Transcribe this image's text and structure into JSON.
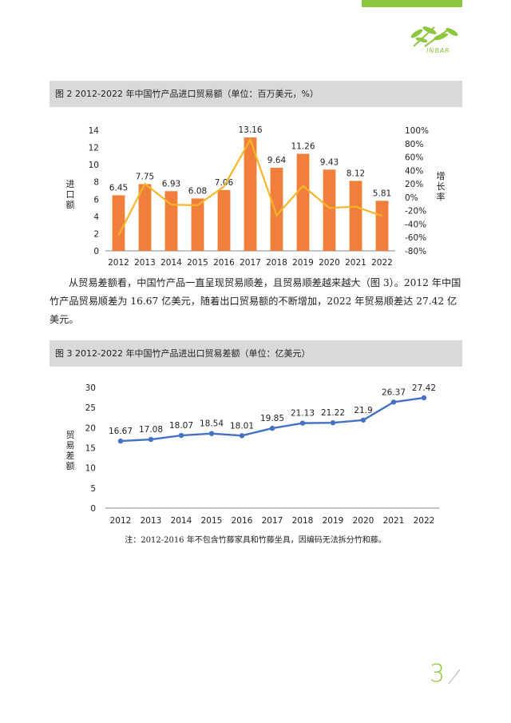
{
  "header": {
    "logo_text": "INBAR",
    "accent_color": "#8dc63f"
  },
  "figure2": {
    "caption": "图 2    2012-2022 年中国竹产品进口贸易额（单位：百万美元，%）",
    "ylabel_left": "进口额",
    "ylabel_right": "增长率"
  },
  "body_text": "从贸易差额看，中国竹产品一直呈现贸易顺差，且贸易顺差越来越大（图 3）。2012 年中国竹产品贸易顺差为 16.67 亿美元，随着出口贸易额的不断增加，2022 年贸易顺差达 27.42 亿美元。",
  "figure3": {
    "caption": "图 3    2012-2022 年中国竹产品进出口贸易差额（单位：亿美元）",
    "ylabel": "贸易差额"
  },
  "note": "注：2012-2016 年不包含竹藤家具和竹藤坐具，因编码无法拆分竹和藤。",
  "page_number": "3",
  "chart_data": [
    {
      "type": "bar",
      "categories": [
        "2012",
        "2013",
        "2014",
        "2015",
        "2016",
        "2017",
        "2018",
        "2019",
        "2020",
        "2021",
        "2022"
      ],
      "series": [
        {
          "name": "",
          "type": "bar",
          "axis": "left",
          "values": [
            6.45,
            7.75,
            6.93,
            6.08,
            7.06,
            13.16,
            9.64,
            11.26,
            9.43,
            8.12,
            5.81
          ],
          "labels": [
            "6.45",
            "7.75",
            "6.93",
            "6.08",
            "7.06",
            "13.16",
            "9.64",
            "11.26",
            "9.43",
            "8.12",
            "5.81"
          ],
          "color": "#f07f3c"
        },
        {
          "name": "",
          "type": "line",
          "axis": "right",
          "values": [
            -57,
            20,
            -11,
            -12,
            16,
            86,
            -27,
            17,
            -16,
            -14,
            -28
          ],
          "color": "#f5b62a"
        }
      ],
      "ylim_left": [
        0,
        14
      ],
      "yticks_left": [
        "0",
        "2",
        "4",
        "6",
        "8",
        "10",
        "12",
        "14"
      ],
      "ylim_right": [
        -80,
        100
      ],
      "yticks_right": [
        "-80%",
        "-60%",
        "-40%",
        "-20%",
        "0%",
        "20%",
        "40%",
        "60%",
        "80%",
        "100%"
      ],
      "xlabel": "",
      "ylabel": "进口额",
      "y2label": "增长率",
      "grid": false,
      "legend": "none"
    },
    {
      "type": "line",
      "categories": [
        "2012",
        "2013",
        "2014",
        "2015",
        "2016",
        "2017",
        "2018",
        "2019",
        "2020",
        "2021",
        "2022"
      ],
      "series": [
        {
          "name": "",
          "values": [
            16.67,
            17.08,
            18.07,
            18.54,
            18.01,
            19.85,
            21.13,
            21.22,
            21.9,
            26.37,
            27.42
          ],
          "labels": [
            "16.67",
            "17.08",
            "18.07",
            "18.54",
            "18.01",
            "19.85",
            "21.13",
            "21.22",
            "21.9",
            "26.37",
            "27.42"
          ],
          "color": "#4472c4"
        }
      ],
      "ylim": [
        0,
        30
      ],
      "yticks": [
        "0",
        "5",
        "10",
        "15",
        "20",
        "25",
        "30"
      ],
      "xlabel": "",
      "ylabel": "贸易差额",
      "grid": false,
      "legend": "none"
    }
  ]
}
